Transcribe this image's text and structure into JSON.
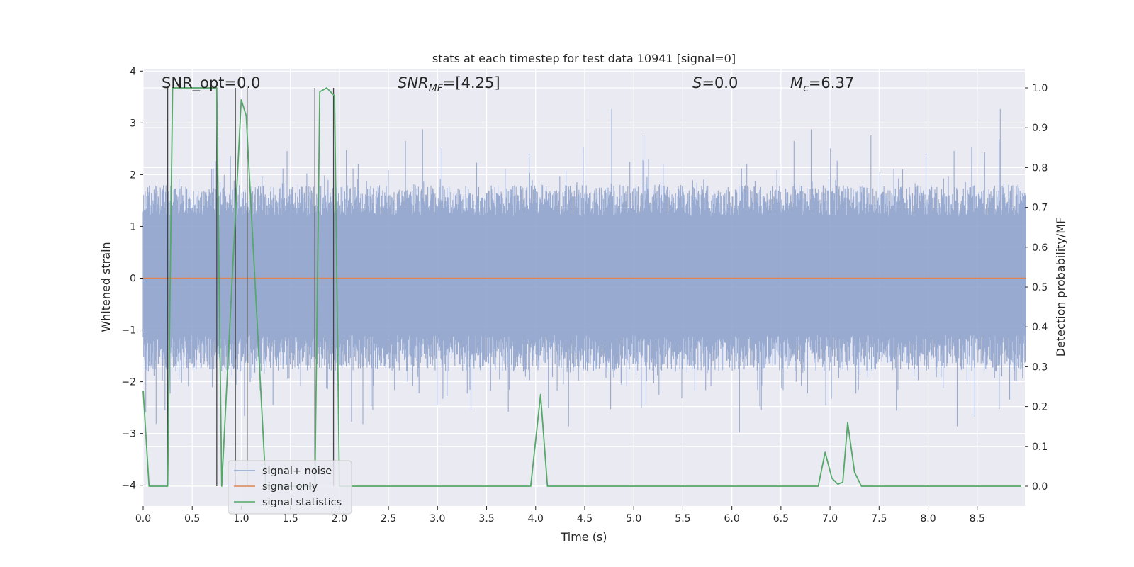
{
  "chart_data": {
    "type": "line",
    "title": "stats at each timestep for test data 10941 [signal=0]",
    "xlabel": "Time (s)",
    "ylabel_left": "Whitened strain",
    "ylabel_right": "Detection probability/MF",
    "xlim": [
      0.0,
      9.0
    ],
    "ylim_left": [
      -4.35,
      4.05
    ],
    "ylim_right": [
      -0.048,
      1.04
    ],
    "x_ticks": [
      "0.0",
      "0.5",
      "1.0",
      "1.5",
      "2.0",
      "2.5",
      "3.0",
      "3.5",
      "4.0",
      "4.5",
      "5.0",
      "5.5",
      "6.0",
      "6.5",
      "7.0",
      "7.5",
      "8.0",
      "8.5"
    ],
    "y_ticks_left": [
      "4",
      "3",
      "2",
      "1",
      "0",
      "−1",
      "−2",
      "−3",
      "−4"
    ],
    "y_ticks_right": [
      "1.0",
      "0.9",
      "0.8",
      "0.7",
      "0.6",
      "0.5",
      "0.4",
      "0.3",
      "0.2",
      "0.1",
      "0.0"
    ],
    "annotations": {
      "snr_opt": "SNR_opt=0.0",
      "snr_mf_label": "SNR",
      "snr_mf_sub": "MF",
      "snr_mf_value": "=[4.25]",
      "s_label": "S",
      "s_value": "=0.0",
      "mc_label": "M",
      "mc_sub": "c",
      "mc_value": "=6.37"
    },
    "legend": {
      "position": "lower-left",
      "entries": [
        "signal+ noise",
        "signal only",
        "signal statistics"
      ]
    },
    "colors": {
      "noise": "#8fa3cc",
      "signal": "#dd8452",
      "stats": "#55a868",
      "vlines": "#444444",
      "plot_bg": "#eaeaf2",
      "grid": "#ffffff"
    },
    "series": [
      {
        "name": "signal+ noise",
        "axis": "left",
        "description_range": "dense noise, roughly within [-3.9, 3.7]",
        "envelope_note": "whitened noise time series sampled across 0–9 s"
      },
      {
        "name": "signal only",
        "axis": "left",
        "x": [
          0.0,
          9.0
        ],
        "values": [
          0.0,
          0.0
        ]
      },
      {
        "name": "signal statistics",
        "axis": "right",
        "x": [
          0.0,
          0.06,
          0.25,
          0.3,
          0.75,
          0.8,
          1.0,
          1.05,
          1.25,
          1.75,
          1.8,
          1.87,
          1.95,
          2.0,
          3.95,
          4.05,
          4.12,
          6.8,
          6.88,
          6.95,
          7.02,
          7.08,
          7.13,
          7.18,
          7.25,
          7.32,
          8.95
        ],
        "values": [
          0.24,
          0.0,
          0.0,
          1.0,
          1.0,
          0.0,
          0.97,
          0.93,
          0.0,
          0.0,
          0.99,
          1.0,
          0.98,
          0.0,
          0.0,
          0.23,
          0.0,
          0.0,
          0.0,
          0.085,
          0.02,
          0.005,
          0.01,
          0.16,
          0.035,
          0.0,
          0.0
        ]
      }
    ],
    "vertical_markers_x": [
      0.25,
      0.75,
      0.94,
      1.06,
      1.75,
      1.94
    ]
  }
}
